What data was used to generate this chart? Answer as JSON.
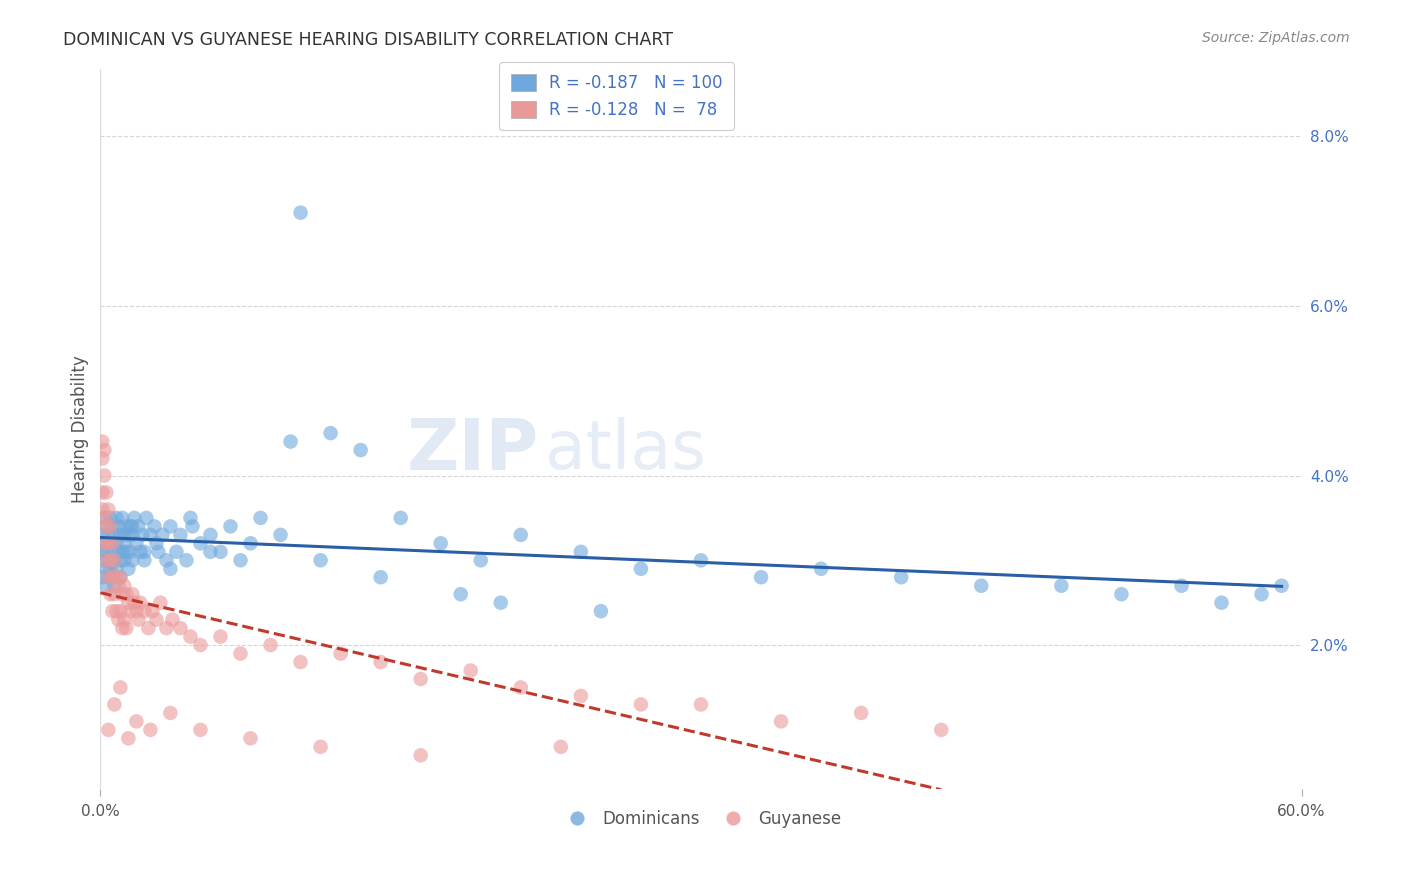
{
  "title": "DOMINICAN VS GUYANESE HEARING DISABILITY CORRELATION CHART",
  "source": "Source: ZipAtlas.com",
  "ylabel": "Hearing Disability",
  "right_yticks": [
    "2.0%",
    "4.0%",
    "6.0%",
    "8.0%"
  ],
  "right_ytick_vals": [
    0.02,
    0.04,
    0.06,
    0.08
  ],
  "xlim": [
    0.0,
    0.6
  ],
  "ylim": [
    0.003,
    0.088
  ],
  "color_blue": "#6fa8dc",
  "color_pink": "#ea9999",
  "color_blue_line": "#2a5fa5",
  "color_pink_line": "#c0392b",
  "color_grid": "#cccccc",
  "watermark_zip": "ZIP",
  "watermark_atlas": "atlas",
  "dominicans_x": [
    0.001,
    0.001,
    0.001,
    0.002,
    0.002,
    0.002,
    0.003,
    0.003,
    0.003,
    0.003,
    0.004,
    0.004,
    0.004,
    0.005,
    0.005,
    0.005,
    0.006,
    0.006,
    0.006,
    0.007,
    0.007,
    0.007,
    0.008,
    0.008,
    0.008,
    0.009,
    0.009,
    0.01,
    0.01,
    0.01,
    0.011,
    0.011,
    0.012,
    0.012,
    0.013,
    0.013,
    0.014,
    0.014,
    0.015,
    0.015,
    0.016,
    0.016,
    0.017,
    0.018,
    0.019,
    0.02,
    0.021,
    0.022,
    0.023,
    0.025,
    0.027,
    0.029,
    0.031,
    0.033,
    0.035,
    0.038,
    0.04,
    0.043,
    0.046,
    0.05,
    0.055,
    0.06,
    0.065,
    0.07,
    0.08,
    0.09,
    0.1,
    0.115,
    0.13,
    0.15,
    0.17,
    0.19,
    0.21,
    0.24,
    0.27,
    0.3,
    0.33,
    0.36,
    0.4,
    0.44,
    0.48,
    0.51,
    0.54,
    0.56,
    0.58,
    0.59,
    0.095,
    0.045,
    0.028,
    0.016,
    0.2,
    0.25,
    0.18,
    0.14,
    0.11,
    0.075,
    0.055,
    0.035,
    0.022,
    0.012
  ],
  "dominicans_y": [
    0.033,
    0.031,
    0.028,
    0.035,
    0.032,
    0.03,
    0.034,
    0.031,
    0.029,
    0.027,
    0.033,
    0.03,
    0.028,
    0.035,
    0.032,
    0.029,
    0.034,
    0.031,
    0.028,
    0.033,
    0.03,
    0.027,
    0.035,
    0.032,
    0.029,
    0.034,
    0.031,
    0.033,
    0.03,
    0.028,
    0.035,
    0.031,
    0.033,
    0.03,
    0.034,
    0.031,
    0.033,
    0.029,
    0.034,
    0.031,
    0.033,
    0.03,
    0.035,
    0.032,
    0.034,
    0.031,
    0.033,
    0.03,
    0.035,
    0.033,
    0.034,
    0.031,
    0.033,
    0.03,
    0.034,
    0.031,
    0.033,
    0.03,
    0.034,
    0.032,
    0.033,
    0.031,
    0.034,
    0.03,
    0.035,
    0.033,
    0.071,
    0.045,
    0.043,
    0.035,
    0.032,
    0.03,
    0.033,
    0.031,
    0.029,
    0.03,
    0.028,
    0.029,
    0.028,
    0.027,
    0.027,
    0.026,
    0.027,
    0.025,
    0.026,
    0.027,
    0.044,
    0.035,
    0.032,
    0.034,
    0.025,
    0.024,
    0.026,
    0.028,
    0.03,
    0.032,
    0.031,
    0.029,
    0.031,
    0.032
  ],
  "guyanese_x": [
    0.001,
    0.001,
    0.001,
    0.001,
    0.002,
    0.002,
    0.002,
    0.002,
    0.003,
    0.003,
    0.003,
    0.004,
    0.004,
    0.004,
    0.005,
    0.005,
    0.005,
    0.006,
    0.006,
    0.006,
    0.007,
    0.007,
    0.008,
    0.008,
    0.009,
    0.009,
    0.01,
    0.01,
    0.011,
    0.011,
    0.012,
    0.012,
    0.013,
    0.013,
    0.014,
    0.015,
    0.016,
    0.017,
    0.018,
    0.019,
    0.02,
    0.022,
    0.024,
    0.026,
    0.028,
    0.03,
    0.033,
    0.036,
    0.04,
    0.045,
    0.05,
    0.06,
    0.07,
    0.085,
    0.1,
    0.12,
    0.14,
    0.16,
    0.185,
    0.21,
    0.24,
    0.27,
    0.3,
    0.34,
    0.38,
    0.42,
    0.004,
    0.007,
    0.01,
    0.014,
    0.018,
    0.025,
    0.035,
    0.05,
    0.075,
    0.11,
    0.16,
    0.23
  ],
  "guyanese_y": [
    0.044,
    0.042,
    0.038,
    0.036,
    0.043,
    0.04,
    0.035,
    0.032,
    0.038,
    0.034,
    0.03,
    0.036,
    0.032,
    0.028,
    0.034,
    0.03,
    0.026,
    0.032,
    0.028,
    0.024,
    0.03,
    0.026,
    0.028,
    0.024,
    0.027,
    0.023,
    0.028,
    0.024,
    0.026,
    0.022,
    0.027,
    0.023,
    0.026,
    0.022,
    0.025,
    0.024,
    0.026,
    0.025,
    0.024,
    0.023,
    0.025,
    0.024,
    0.022,
    0.024,
    0.023,
    0.025,
    0.022,
    0.023,
    0.022,
    0.021,
    0.02,
    0.021,
    0.019,
    0.02,
    0.018,
    0.019,
    0.018,
    0.016,
    0.017,
    0.015,
    0.014,
    0.013,
    0.013,
    0.011,
    0.012,
    0.01,
    0.01,
    0.013,
    0.015,
    0.009,
    0.011,
    0.01,
    0.012,
    0.01,
    0.009,
    0.008,
    0.007,
    0.008
  ]
}
